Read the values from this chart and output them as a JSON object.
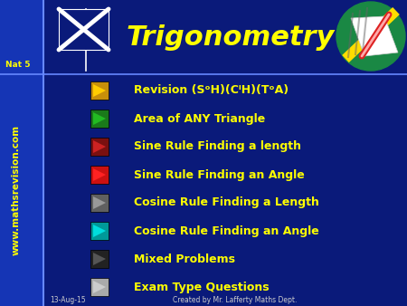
{
  "title": "Trigonometry",
  "background_color": "#0a1a7a",
  "left_bar_color": "#1535b5",
  "title_color": "#ffff00",
  "title_fontsize": 22,
  "nat_label": "Nat 5",
  "nat_color": "#ffff00",
  "website": "www.mathsrevision.com",
  "website_color": "#ffff00",
  "footer_left": "13-Aug-15",
  "footer_right": "Created by Mr. Lafferty Maths Dept.",
  "footer_color": "#cccccc",
  "menu_items": [
    {
      "text": "Revision (SᵒH)(CᴵH)(TᵒA)",
      "box_color": "#c8900a",
      "arrow_color": "#ffcc00"
    },
    {
      "text": "Area of ANY Triangle",
      "box_color": "#1a7a1a",
      "arrow_color": "#22bb22"
    },
    {
      "text": "Sine Rule Finding a length",
      "box_color": "#7a1010",
      "arrow_color": "#cc2222"
    },
    {
      "text": "Sine Rule Finding an Angle",
      "box_color": "#cc1111",
      "arrow_color": "#ff2222"
    },
    {
      "text": "Cosine Rule Finding a Length",
      "box_color": "#606060",
      "arrow_color": "#999999"
    },
    {
      "text": "Cosine Rule Finding an Angle",
      "box_color": "#009999",
      "arrow_color": "#00dddd"
    },
    {
      "text": "Mixed Problems",
      "box_color": "#222222",
      "arrow_color": "#555555"
    },
    {
      "text": "Exam Type Questions",
      "box_color": "#aaaaaa",
      "arrow_color": "#cccccc"
    }
  ],
  "text_color": "#ffff00"
}
